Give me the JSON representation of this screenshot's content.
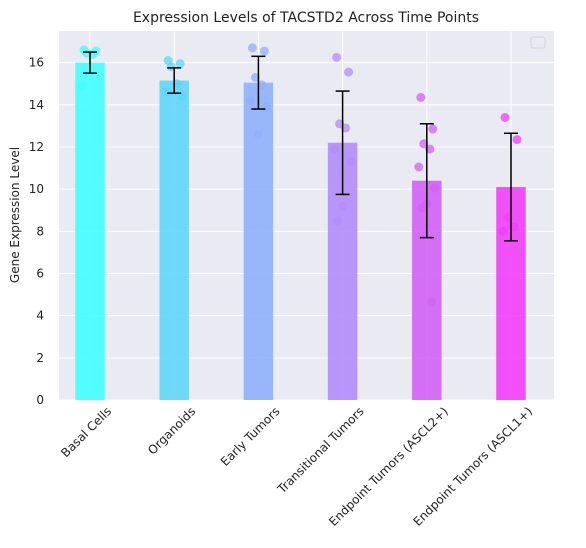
{
  "chart_data": {
    "type": "bar",
    "title": "Expression Levels of TACSTD2 Across Time Points",
    "xlabel": "",
    "ylabel": "Gene Expression Level",
    "ylim": [
      0,
      17.5
    ],
    "yticks": [
      0,
      2,
      4,
      6,
      8,
      10,
      12,
      14,
      16
    ],
    "grid": true,
    "legend": "top-right (empty)",
    "categories": [
      "Basal Cells",
      "Organoids",
      "Early Tumors",
      "Transitional Tumors",
      "Endpoint Tumors (ASCL2+)",
      "Endpoint Tumors (ASCL1+)"
    ],
    "values": [
      16.0,
      15.15,
      15.05,
      12.2,
      10.4,
      10.1
    ],
    "errors": [
      0.5,
      0.6,
      1.25,
      2.45,
      2.7,
      2.55
    ],
    "colors": [
      "#40ffff",
      "#5fd6f8",
      "#8fb0fb",
      "#b38cf9",
      "#d161f4",
      "#f23ef8"
    ],
    "points": [
      [
        16.6,
        16.55,
        16.45,
        16.4,
        14.9
      ],
      [
        16.1,
        15.95,
        15.8,
        15.0,
        14.6,
        14.4
      ],
      [
        16.7,
        16.55,
        15.3,
        14.95,
        14.2,
        13.9,
        12.6
      ],
      [
        16.25,
        15.55,
        13.1,
        12.9,
        11.9,
        11.3,
        9.2,
        8.5
      ],
      [
        14.35,
        12.85,
        12.15,
        11.9,
        11.05,
        10.05,
        9.3,
        9.1,
        4.65
      ],
      [
        13.4,
        12.35,
        8.65,
        8.2,
        8.0
      ]
    ]
  }
}
